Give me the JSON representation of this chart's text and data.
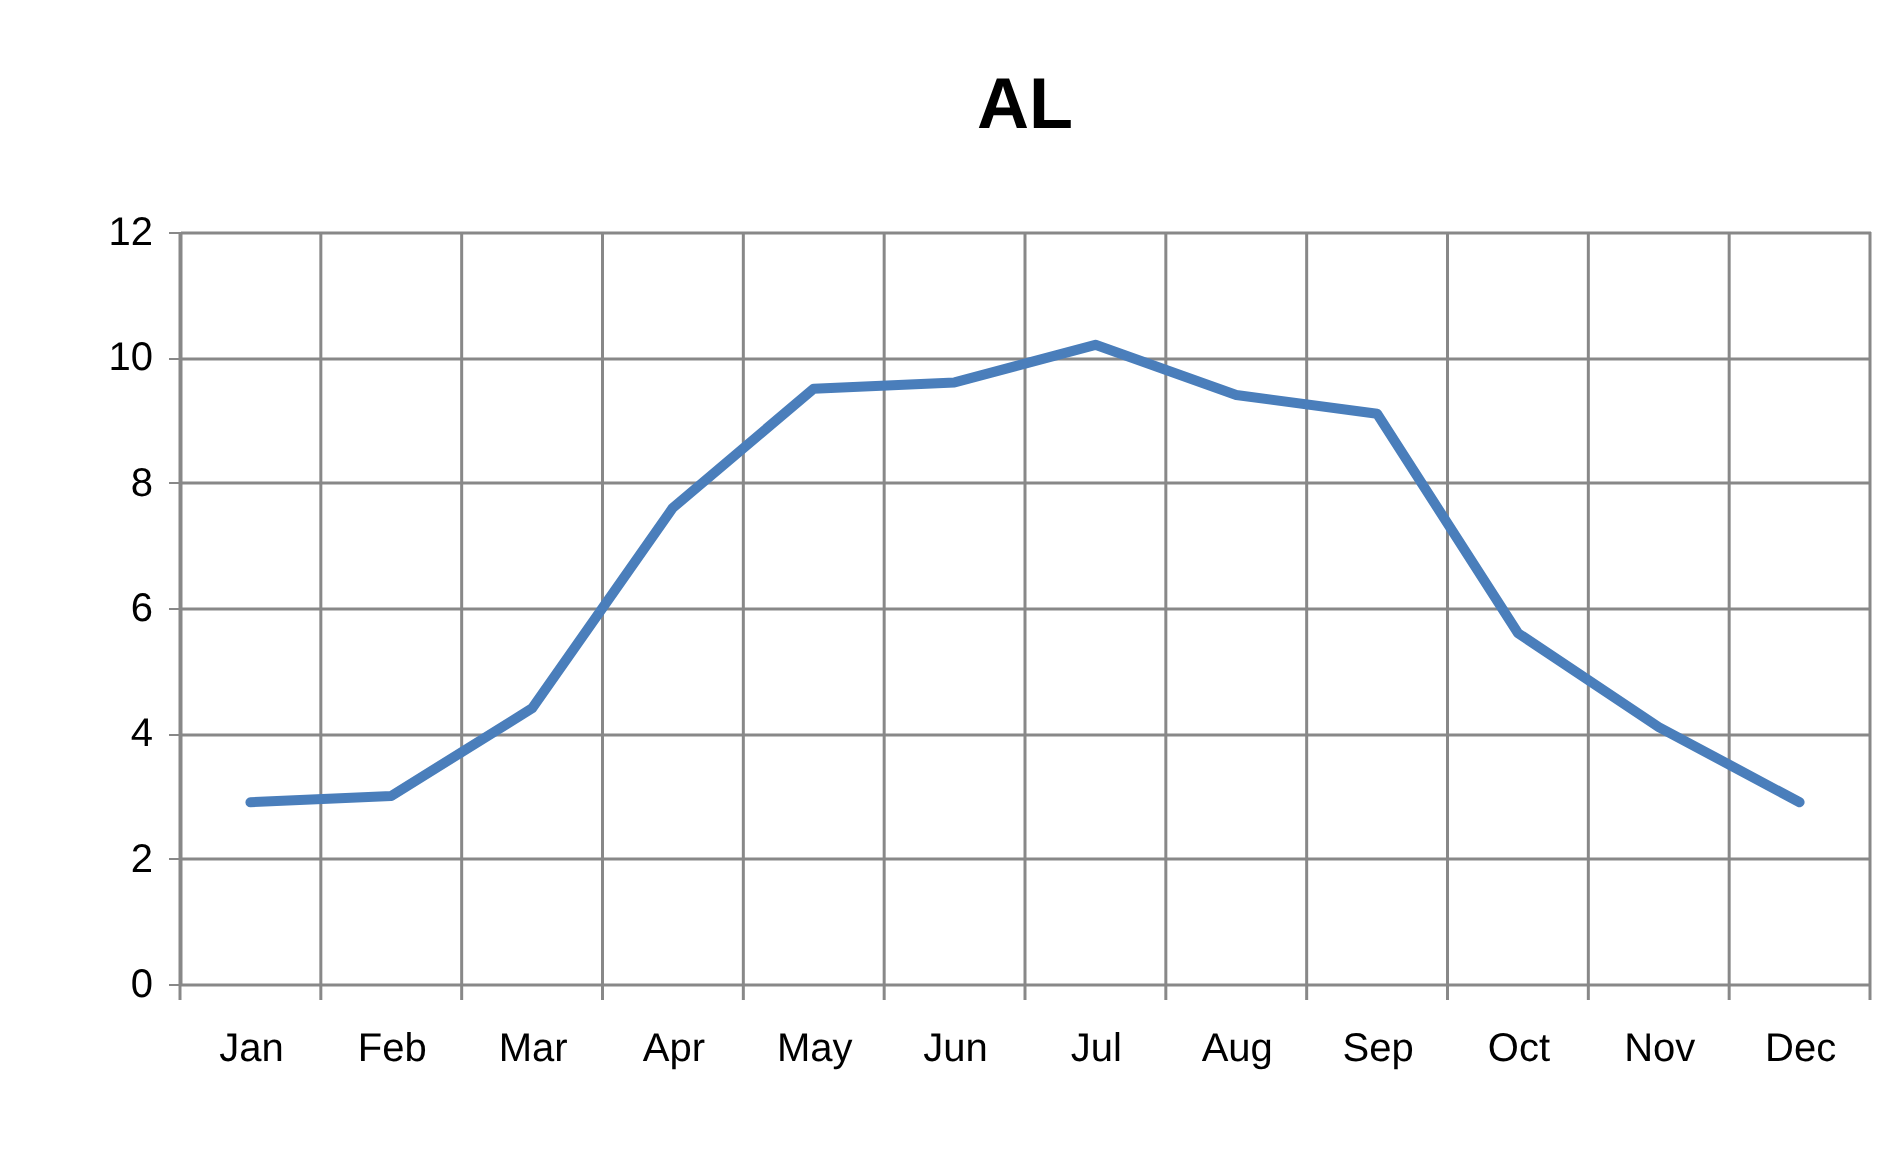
{
  "chart_data": {
    "type": "line",
    "title": "AL",
    "categories": [
      "Jan",
      "Feb",
      "Mar",
      "Apr",
      "May",
      "Jun",
      "Jul",
      "Aug",
      "Sep",
      "Oct",
      "Nov",
      "Dec"
    ],
    "series": [
      {
        "color": "#4a7ebb",
        "values": [
          2.9,
          3.0,
          4.4,
          7.6,
          9.5,
          9.6,
          10.2,
          9.4,
          9.1,
          5.6,
          4.1,
          2.9
        ]
      }
    ],
    "ylim": [
      0,
      12
    ],
    "yticks": [
      0,
      2,
      4,
      6,
      8,
      10,
      12
    ],
    "grid": true,
    "marker": "none",
    "line_style": "solid"
  }
}
